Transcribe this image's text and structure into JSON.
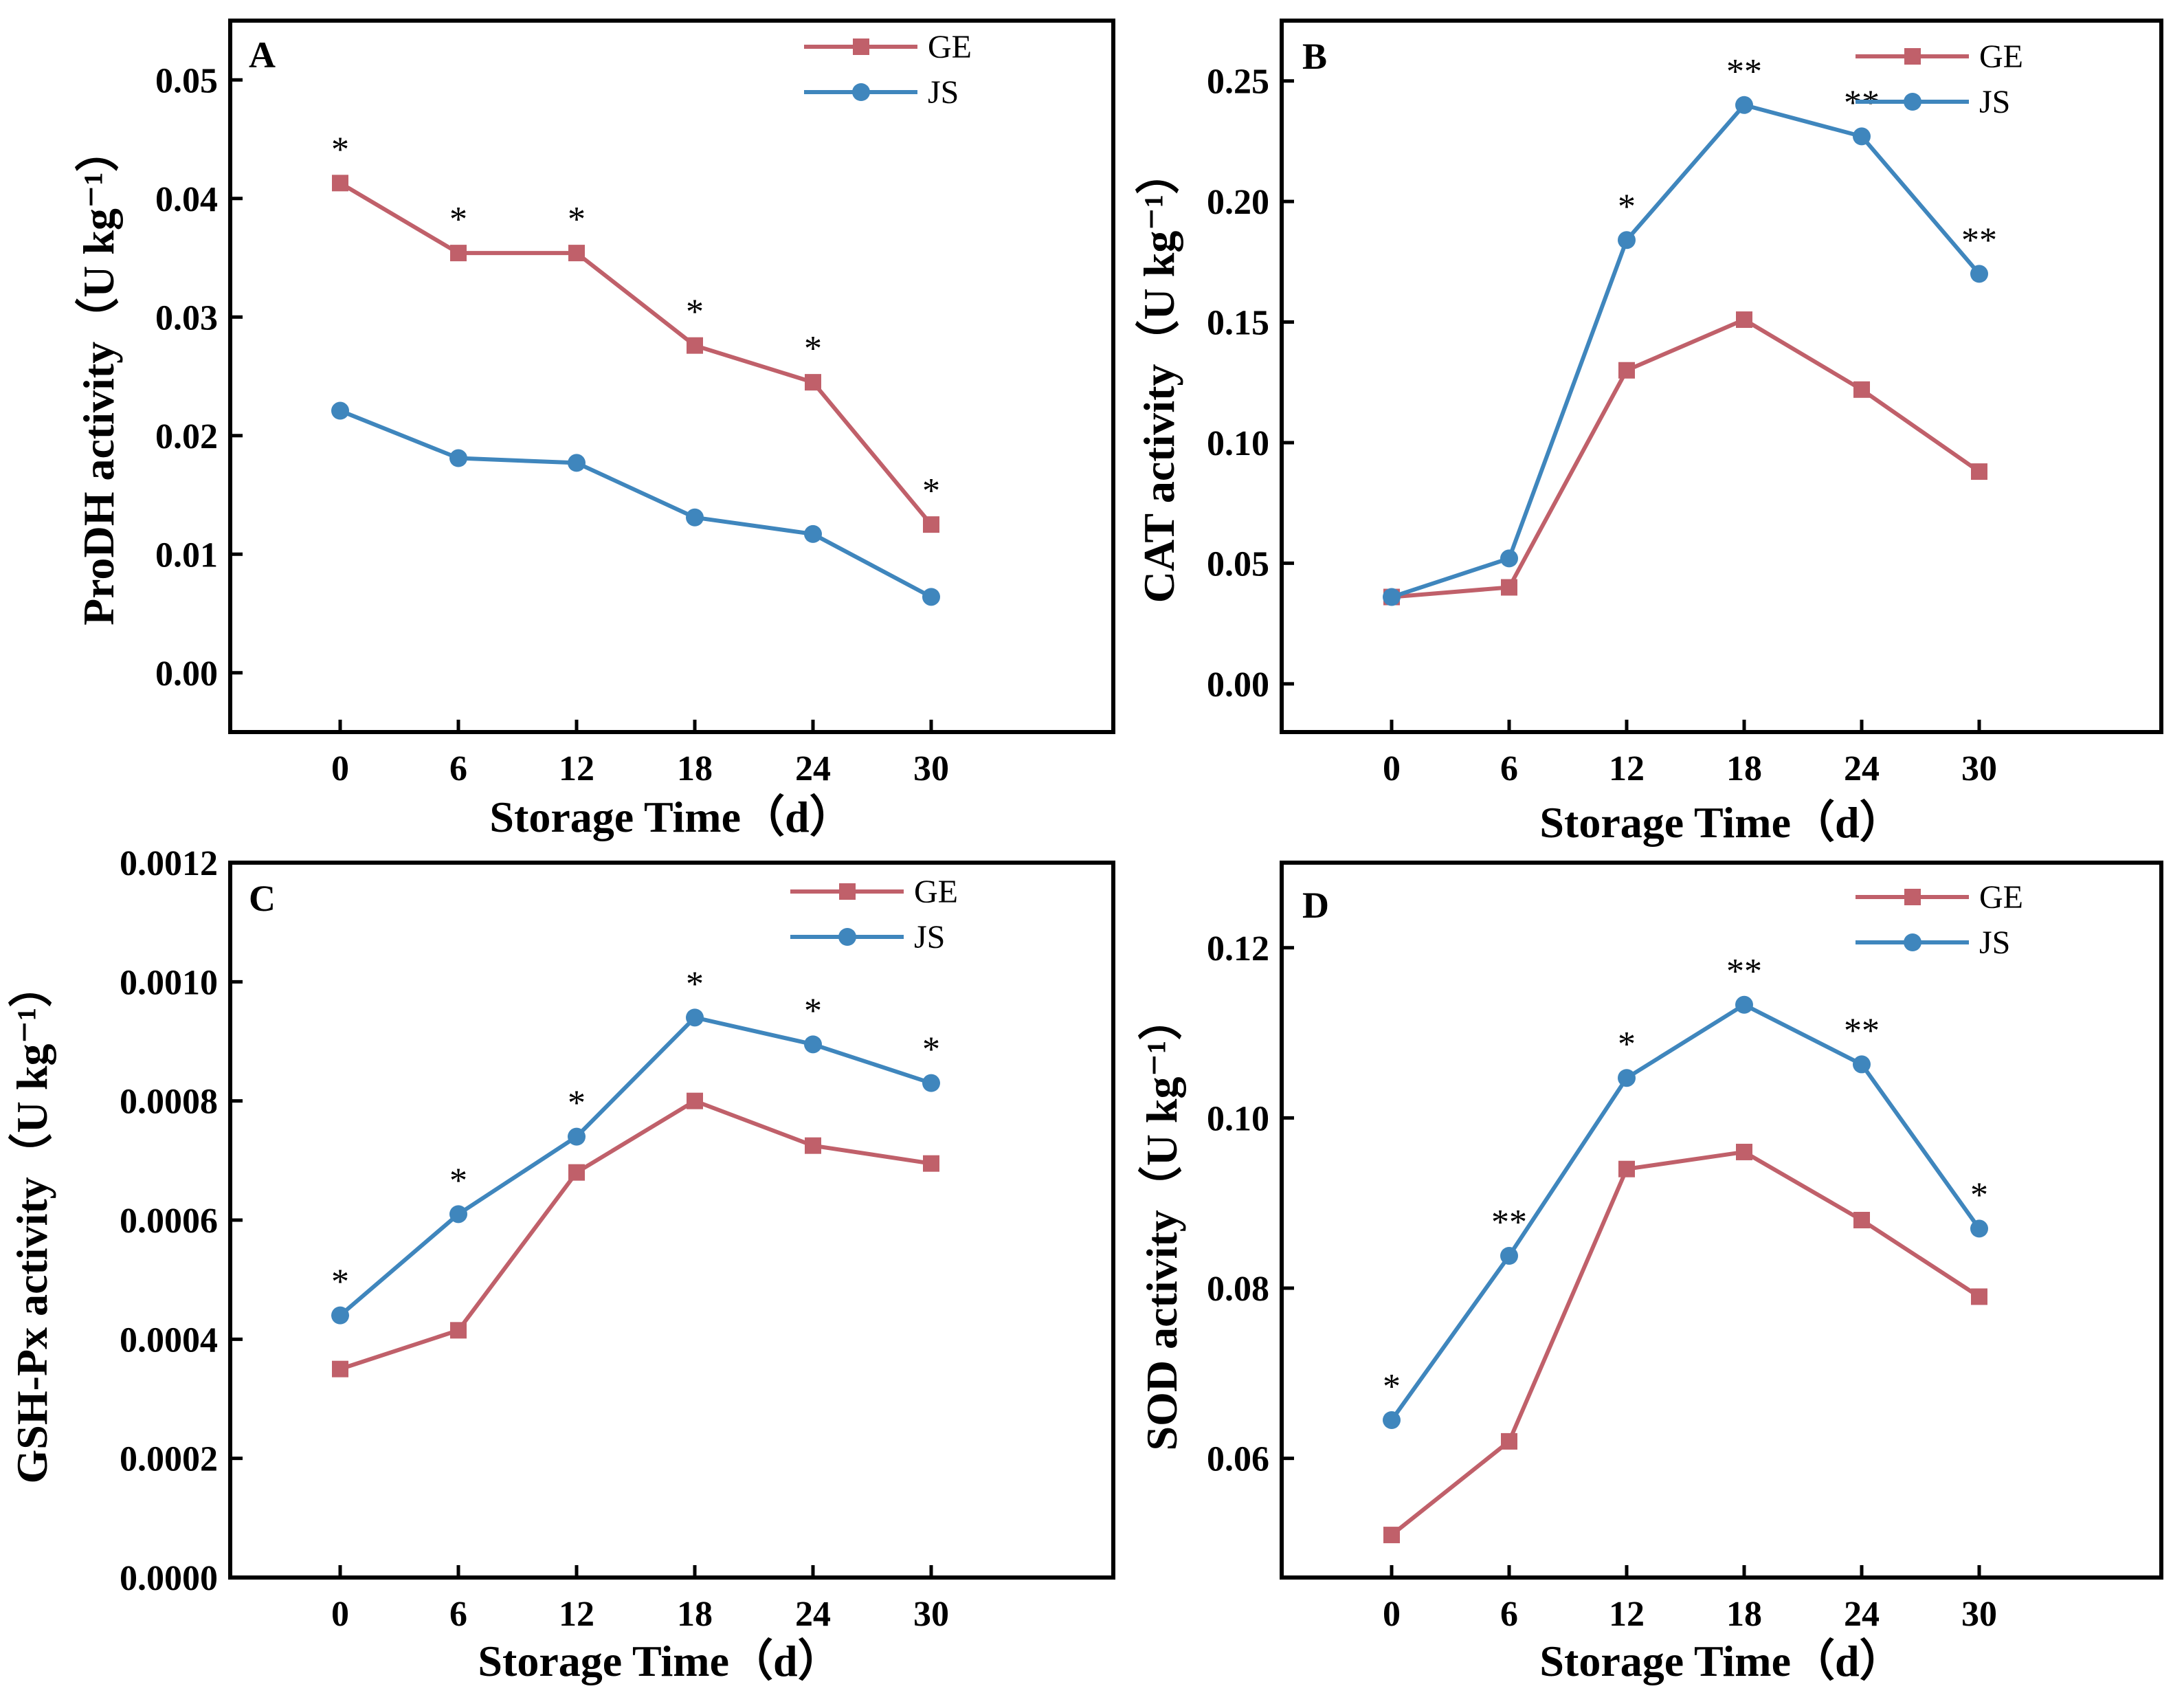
{
  "colors": {
    "GE": "#c0606a",
    "JS": "#3f86bd"
  },
  "chart_data": [
    {
      "panel": "A",
      "type": "line",
      "x": [
        0,
        6,
        12,
        18,
        24,
        30
      ],
      "xlabel": "Storage Time（d）",
      "ylabel": "ProDH activity（U kg⁻¹）",
      "ylim": [
        -0.005,
        0.055
      ],
      "yticks": [
        0.0,
        0.01,
        0.02,
        0.03,
        0.04,
        0.05
      ],
      "ytick_labels": [
        "0.00",
        "0.01",
        "0.02",
        "0.03",
        "0.04",
        "0.05"
      ],
      "legend_position": "top-right",
      "series": [
        {
          "name": "GE",
          "marker": "square",
          "values": [
            0.0413,
            0.0354,
            0.0354,
            0.0276,
            0.0245,
            0.0125
          ]
        },
        {
          "name": "JS",
          "marker": "circle",
          "values": [
            0.0221,
            0.0181,
            0.0177,
            0.0131,
            0.0117,
            0.0064
          ]
        }
      ],
      "annotations": [
        {
          "x": 0,
          "text": "*",
          "above": "GE"
        },
        {
          "x": 6,
          "text": "*",
          "above": "GE"
        },
        {
          "x": 12,
          "text": "*",
          "above": "GE"
        },
        {
          "x": 18,
          "text": "*",
          "above": "GE"
        },
        {
          "x": 24,
          "text": "*",
          "above": "GE"
        },
        {
          "x": 30,
          "text": "*",
          "above": "GE"
        }
      ]
    },
    {
      "panel": "B",
      "type": "line",
      "x": [
        0,
        6,
        12,
        18,
        24,
        30
      ],
      "xlabel": "Storage Time（d）",
      "ylabel": "CAT activity（U kg⁻¹）",
      "ylim": [
        -0.02,
        0.275
      ],
      "yticks": [
        0.0,
        0.05,
        0.1,
        0.15,
        0.2,
        0.25
      ],
      "ytick_labels": [
        "0.00",
        "0.05",
        "0.10",
        "0.15",
        "0.20",
        "0.25"
      ],
      "legend_position": "top-right",
      "series": [
        {
          "name": "GE",
          "marker": "square",
          "values": [
            0.036,
            0.04,
            0.13,
            0.151,
            0.122,
            0.088
          ]
        },
        {
          "name": "JS",
          "marker": "circle",
          "values": [
            0.036,
            0.052,
            0.184,
            0.24,
            0.227,
            0.17
          ]
        }
      ],
      "annotations": [
        {
          "x": 12,
          "text": "*",
          "above": "JS"
        },
        {
          "x": 18,
          "text": "**",
          "above": "JS"
        },
        {
          "x": 24,
          "text": "**",
          "above": "JS"
        },
        {
          "x": 30,
          "text": "**",
          "above": "JS"
        }
      ]
    },
    {
      "panel": "C",
      "type": "line",
      "x": [
        0,
        6,
        12,
        18,
        24,
        30
      ],
      "xlabel": "Storage Time（d）",
      "ylabel": "GSH-Px activity（U kg⁻¹）",
      "ylim": [
        0,
        0.0012
      ],
      "yticks": [
        0.0,
        0.0002,
        0.0004,
        0.0006,
        0.0008,
        0.001,
        0.0012
      ],
      "ytick_labels": [
        "0.0000",
        "0.0002",
        "0.0004",
        "0.0006",
        "0.0008",
        "0.0010",
        "0.0012"
      ],
      "legend_position": "top-right",
      "series": [
        {
          "name": "GE",
          "marker": "square",
          "values": [
            0.00035,
            0.000415,
            0.00068,
            0.0008,
            0.000725,
            0.000695
          ]
        },
        {
          "name": "JS",
          "marker": "circle",
          "values": [
            0.00044,
            0.00061,
            0.00074,
            0.00094,
            0.000895,
            0.00083
          ]
        }
      ],
      "annotations": [
        {
          "x": 0,
          "text": "*",
          "above": "JS"
        },
        {
          "x": 6,
          "text": "*",
          "above": "JS"
        },
        {
          "x": 12,
          "text": "*",
          "above": "JS"
        },
        {
          "x": 18,
          "text": "*",
          "above": "JS"
        },
        {
          "x": 24,
          "text": "*",
          "above": "JS"
        },
        {
          "x": 30,
          "text": "*",
          "above": "JS"
        }
      ]
    },
    {
      "panel": "D",
      "type": "line",
      "x": [
        0,
        6,
        12,
        18,
        24,
        30
      ],
      "xlabel": "Storage Time（d）",
      "ylabel": "SOD activity（U kg⁻¹）",
      "ylim": [
        0.046,
        0.13
      ],
      "yticks": [
        0.06,
        0.08,
        0.1,
        0.12
      ],
      "ytick_labels": [
        "0.06",
        "0.08",
        "0.10",
        "0.12"
      ],
      "legend_position": "top-right",
      "series": [
        {
          "name": "GE",
          "marker": "square",
          "values": [
            0.051,
            0.062,
            0.094,
            0.096,
            0.088,
            0.079
          ]
        },
        {
          "name": "JS",
          "marker": "circle",
          "values": [
            0.0645,
            0.0838,
            0.1047,
            0.1133,
            0.1063,
            0.087
          ]
        }
      ],
      "annotations": [
        {
          "x": 0,
          "text": "*",
          "above": "JS"
        },
        {
          "x": 6,
          "text": "**",
          "above": "JS"
        },
        {
          "x": 12,
          "text": "*",
          "above": "JS"
        },
        {
          "x": 18,
          "text": "**",
          "above": "JS"
        },
        {
          "x": 24,
          "text": "**",
          "above": "JS"
        },
        {
          "x": 30,
          "text": "*",
          "above": "JS"
        }
      ]
    }
  ]
}
